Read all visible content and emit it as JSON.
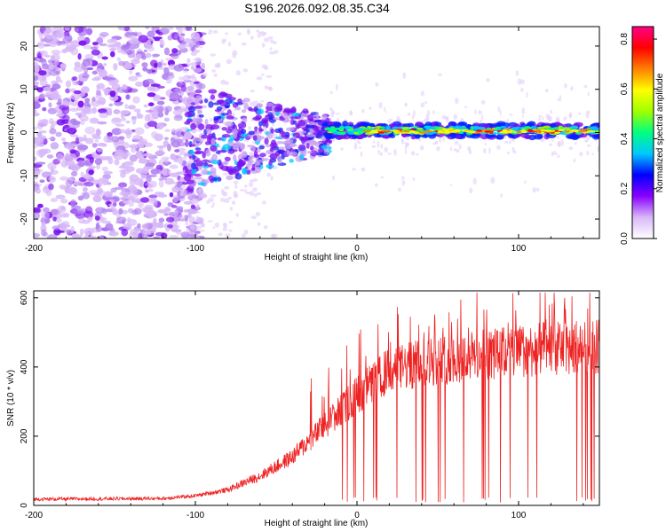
{
  "title": "S196.2026.092.08.35.C34",
  "chart_data": [
    {
      "type": "heatmap",
      "xlabel": "Height of straight line (km)",
      "ylabel": "Frequency (Hz)",
      "xlim": [
        -200,
        150
      ],
      "ylim": [
        -24.5,
        24.5
      ],
      "xticks": [
        -200,
        -100,
        0,
        100
      ],
      "xtick_labels": [
        "-200",
        "-100",
        "0",
        "100"
      ],
      "yticks": [
        -20,
        -10,
        0,
        10,
        20
      ],
      "ytick_labels": [
        "-20",
        "-10",
        "0",
        "10",
        "20"
      ],
      "colorbar": {
        "label": "Normalized spectral amplitude",
        "range": [
          0.0,
          0.85
        ],
        "ticks": [
          0.0,
          0.2,
          0.4,
          0.6,
          0.8
        ],
        "tick_labels": [
          "0.0",
          "0.2",
          "0.4",
          "0.6",
          "0.8"
        ],
        "colormap": [
          "#ffffff",
          "#d8b8f8",
          "#8800ff",
          "#0000ff",
          "#00c8ff",
          "#00ff80",
          "#a0ff00",
          "#ffff00",
          "#ff8000",
          "#ff0000",
          "#ff0088"
        ]
      },
      "description_regions": [
        {
          "x_range": [
            -200,
            -100
          ],
          "freq_range": [
            -24.5,
            24.5
          ],
          "amplitude": 0.05,
          "note": "broadband scatter"
        },
        {
          "x_range": [
            -100,
            -20
          ],
          "freq_range": [
            -15,
            10
          ],
          "amplitude": 0.12,
          "note": "converging band"
        },
        {
          "x_range": [
            -20,
            150
          ],
          "freq_range": [
            -1.5,
            2.5
          ],
          "amplitude": 0.8,
          "note": "narrow carrier line near 0 Hz"
        }
      ]
    },
    {
      "type": "line",
      "xlabel": "Height of straight line (km)",
      "ylabel": "SNR (10 * v/v)",
      "xlim": [
        -200,
        150
      ],
      "ylim": [
        0,
        620
      ],
      "xticks": [
        -200,
        -100,
        0,
        100
      ],
      "xtick_labels": [
        "-200",
        "-100",
        "0",
        "100"
      ],
      "yticks": [
        0,
        200,
        400,
        600
      ],
      "ytick_labels": [
        "0",
        "200",
        "400",
        "600"
      ],
      "color": "#ee2222",
      "trend": [
        {
          "x": -200,
          "y": 18
        },
        {
          "x": -120,
          "y": 20
        },
        {
          "x": -100,
          "y": 28
        },
        {
          "x": -80,
          "y": 45
        },
        {
          "x": -60,
          "y": 85
        },
        {
          "x": -40,
          "y": 140
        },
        {
          "x": -20,
          "y": 230
        },
        {
          "x": 0,
          "y": 320
        },
        {
          "x": 20,
          "y": 390
        },
        {
          "x": 50,
          "y": 420
        },
        {
          "x": 80,
          "y": 435
        },
        {
          "x": 110,
          "y": 450
        },
        {
          "x": 150,
          "y": 460
        }
      ],
      "spike_max": 615
    }
  ]
}
